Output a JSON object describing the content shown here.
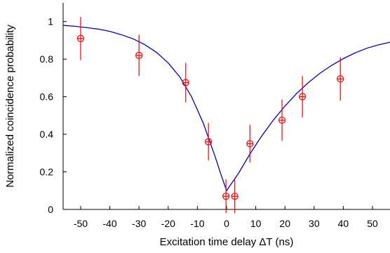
{
  "chart_data": {
    "type": "scatter",
    "title": "",
    "xlabel": "Excitation time delay ΔT (ns)",
    "ylabel": "Normalized coincidence probability",
    "xlim": [
      -56,
      56
    ],
    "ylim": [
      0,
      1.1
    ],
    "x_ticks": [
      -50,
      -40,
      -30,
      -20,
      -10,
      0,
      10,
      20,
      30,
      40,
      50
    ],
    "y_ticks": [
      0,
      0.2,
      0.4,
      0.6,
      0.8,
      1
    ],
    "x_tick_labels": [
      "-50",
      "-40",
      "-30",
      "-20",
      "-10",
      "0",
      "10",
      "20",
      "30",
      "40",
      "50"
    ],
    "y_tick_labels": [
      "0",
      "0.2",
      "0.4",
      "0.6",
      "0.8",
      "1"
    ],
    "grid": false,
    "legend": "none",
    "series": [
      {
        "kind": "measured",
        "marker": "circle-cross",
        "color": "#ff0000",
        "points": [
          {
            "x": -50,
            "y": 0.91,
            "err": 0.115
          },
          {
            "x": -30,
            "y": 0.82,
            "err": 0.11
          },
          {
            "x": -14,
            "y": 0.675,
            "err": 0.105
          },
          {
            "x": -6.2,
            "y": 0.36,
            "err": 0.1
          },
          {
            "x": -0.2,
            "y": 0.07,
            "err": 0.09
          },
          {
            "x": 2.8,
            "y": 0.07,
            "err": 0.09
          },
          {
            "x": 8,
            "y": 0.35,
            "err": 0.1
          },
          {
            "x": 19,
            "y": 0.475,
            "err": 0.11
          },
          {
            "x": 26,
            "y": 0.6,
            "err": 0.11
          },
          {
            "x": 39,
            "y": 0.695,
            "err": 0.115
          }
        ]
      },
      {
        "kind": "fit",
        "color": "#0000cc",
        "x": [
          -56,
          -52,
          -48,
          -44,
          -40,
          -36,
          -32,
          -28,
          -24,
          -20,
          -16,
          -12,
          -8,
          -4,
          -2,
          0,
          2,
          4,
          8,
          12,
          16,
          20,
          24,
          28,
          32,
          36,
          40,
          44,
          48,
          52,
          56
        ],
        "y": [
          0.98,
          0.975,
          0.968,
          0.96,
          0.948,
          0.93,
          0.908,
          0.877,
          0.836,
          0.78,
          0.705,
          0.6,
          0.46,
          0.285,
          0.19,
          0.1,
          0.145,
          0.19,
          0.295,
          0.39,
          0.475,
          0.55,
          0.617,
          0.675,
          0.725,
          0.767,
          0.803,
          0.833,
          0.858,
          0.876,
          0.89
        ]
      }
    ]
  }
}
